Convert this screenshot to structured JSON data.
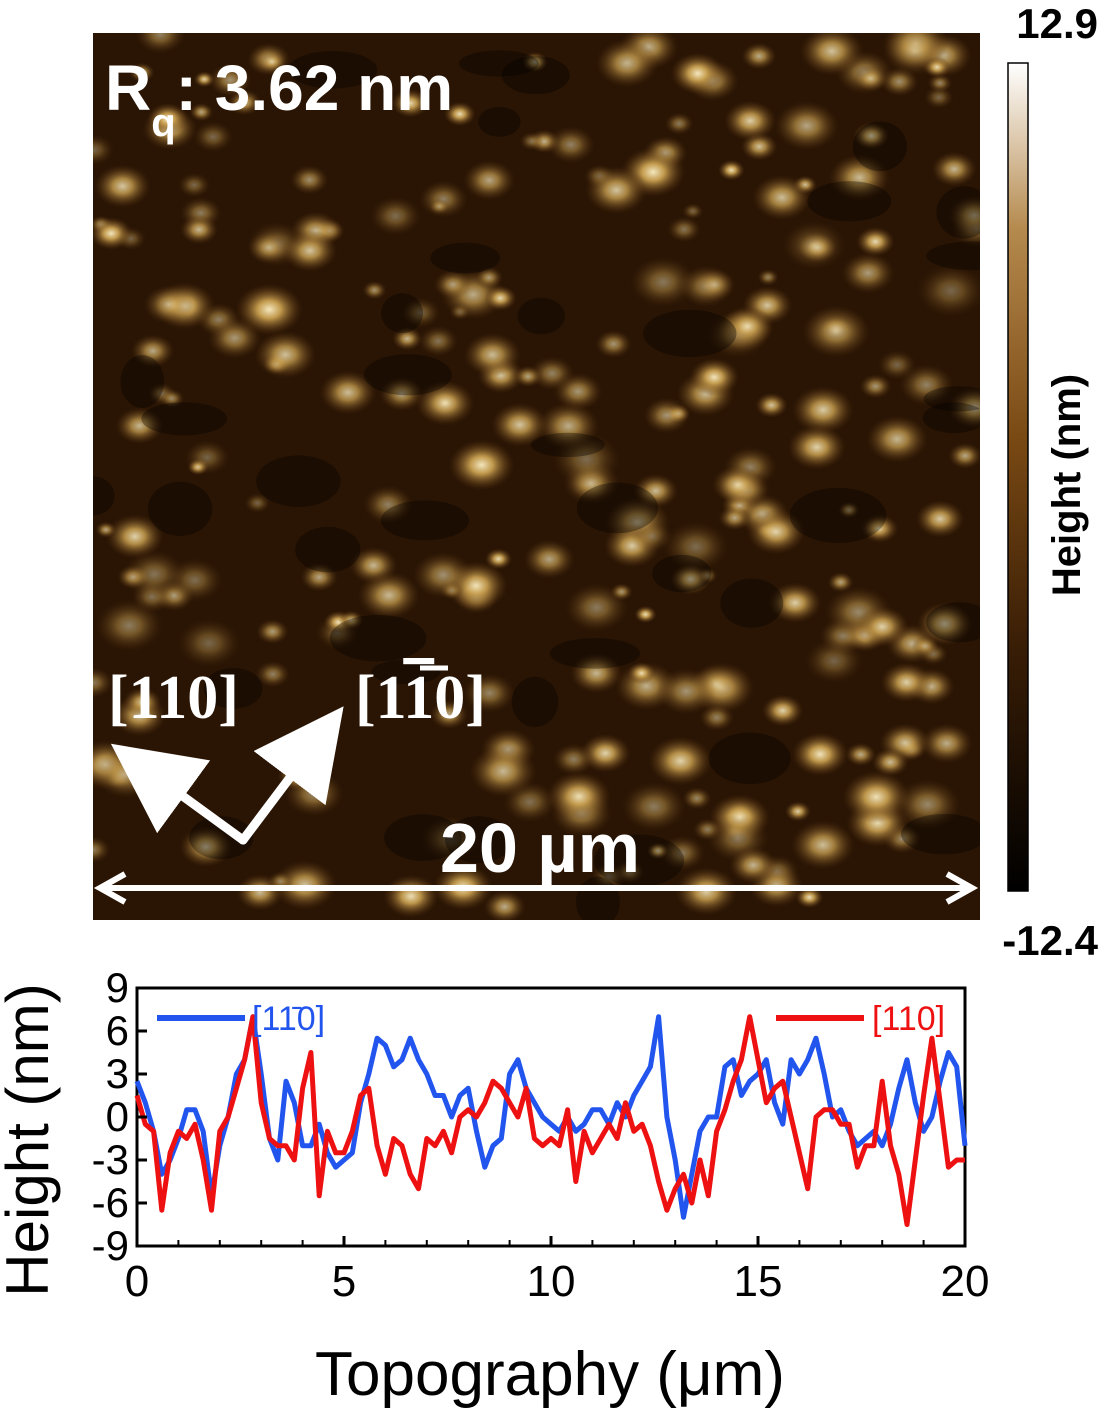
{
  "afm_image": {
    "roughness_label": "R",
    "roughness_subscript": "q",
    "roughness_value": ": 3.62 nm",
    "scale_bar_label": "20 µm",
    "direction_label_a": "[110]",
    "direction_label_b_prefix": "[1",
    "direction_label_b_bar": "1",
    "direction_label_b_suffix": "0]",
    "colorbar": {
      "max_label": "12.9",
      "min_label": "-12.4",
      "title": "Height (nm)",
      "colors": [
        "#000000",
        "#3a1e06",
        "#7a4a14",
        "#b58a4e",
        "#ffffff"
      ]
    },
    "surface_colors": {
      "background": "#2a1504",
      "feature": "#c9a050",
      "highlight": "#fff2c8"
    }
  },
  "chart_data": {
    "type": "line",
    "xlabel": "Topography (μm)",
    "ylabel": "Height (nm)",
    "xlim": [
      0,
      20
    ],
    "ylim": [
      -9,
      9
    ],
    "xticks": [
      0,
      5,
      10,
      15,
      20
    ],
    "yticks": [
      -9,
      -6,
      -3,
      0,
      3,
      6,
      9
    ],
    "legend": [
      "top-left",
      "top-right"
    ],
    "series": [
      {
        "name": "[11̄0]",
        "color": "#2255ee",
        "x": [
          0.0,
          0.2,
          0.4,
          0.6,
          0.8,
          1.0,
          1.2,
          1.4,
          1.6,
          1.8,
          2.0,
          2.2,
          2.4,
          2.6,
          2.8,
          3.0,
          3.2,
          3.4,
          3.6,
          3.8,
          4.0,
          4.2,
          4.4,
          4.6,
          4.8,
          5.0,
          5.2,
          5.4,
          5.6,
          5.8,
          6.0,
          6.2,
          6.4,
          6.6,
          6.8,
          7.0,
          7.2,
          7.4,
          7.6,
          7.8,
          8.0,
          8.2,
          8.4,
          8.6,
          8.8,
          9.0,
          9.2,
          9.4,
          9.6,
          9.8,
          10.0,
          10.2,
          10.4,
          10.6,
          10.8,
          11.0,
          11.2,
          11.4,
          11.6,
          11.8,
          12.0,
          12.2,
          12.4,
          12.6,
          12.8,
          13.0,
          13.2,
          13.4,
          13.6,
          13.8,
          14.0,
          14.2,
          14.4,
          14.6,
          14.8,
          15.0,
          15.2,
          15.4,
          15.6,
          15.8,
          16.0,
          16.2,
          16.4,
          16.6,
          16.8,
          17.0,
          17.2,
          17.4,
          17.6,
          17.8,
          18.0,
          18.2,
          18.4,
          18.6,
          18.8,
          19.0,
          19.2,
          19.4,
          19.6,
          19.8,
          20.0
        ],
        "values": [
          2.5,
          1.0,
          -1.0,
          -4.0,
          -3.0,
          -1.5,
          0.5,
          0.5,
          -1.0,
          -5.5,
          -2.0,
          0.0,
          3.0,
          4.0,
          7.0,
          3.0,
          -1.5,
          -3.0,
          2.5,
          1.0,
          -2.0,
          -2.0,
          -0.5,
          -2.5,
          -3.5,
          -3.0,
          -2.5,
          1.0,
          3.0,
          5.5,
          5.0,
          3.5,
          4.0,
          5.5,
          4.0,
          3.0,
          1.5,
          1.5,
          0.0,
          1.5,
          2.0,
          -1.0,
          -3.5,
          -2.0,
          -1.5,
          3.0,
          4.0,
          2.0,
          1.0,
          0.0,
          -0.5,
          -1.0,
          0.0,
          -1.0,
          -0.5,
          0.5,
          0.5,
          -0.5,
          1.0,
          0.0,
          1.5,
          2.5,
          3.5,
          7.0,
          0.0,
          -3.0,
          -7.0,
          -4.0,
          -1.0,
          0.0,
          0.0,
          3.5,
          4.0,
          1.5,
          2.5,
          3.0,
          4.0,
          1.0,
          -0.5,
          4.0,
          3.0,
          4.0,
          5.5,
          3.0,
          0.0,
          0.5,
          -1.0,
          -2.0,
          -1.5,
          -1.0,
          -2.0,
          -0.5,
          2.0,
          4.0,
          1.0,
          -1.0,
          0.0,
          2.5,
          4.5,
          3.5,
          -2.0
        ]
      },
      {
        "name": "[110]",
        "color": "#ee1111",
        "x": [
          0.0,
          0.2,
          0.4,
          0.6,
          0.8,
          1.0,
          1.2,
          1.4,
          1.6,
          1.8,
          2.0,
          2.2,
          2.4,
          2.6,
          2.8,
          3.0,
          3.2,
          3.4,
          3.6,
          3.8,
          4.0,
          4.2,
          4.4,
          4.6,
          4.8,
          5.0,
          5.2,
          5.4,
          5.6,
          5.8,
          6.0,
          6.2,
          6.4,
          6.6,
          6.8,
          7.0,
          7.2,
          7.4,
          7.6,
          7.8,
          8.0,
          8.2,
          8.4,
          8.6,
          8.8,
          9.0,
          9.2,
          9.4,
          9.6,
          9.8,
          10.0,
          10.2,
          10.4,
          10.6,
          10.8,
          11.0,
          11.2,
          11.4,
          11.6,
          11.8,
          12.0,
          12.2,
          12.4,
          12.6,
          12.8,
          13.0,
          13.2,
          13.4,
          13.6,
          13.8,
          14.0,
          14.2,
          14.4,
          14.6,
          14.8,
          15.0,
          15.2,
          15.4,
          15.6,
          15.8,
          16.0,
          16.2,
          16.4,
          16.6,
          16.8,
          17.0,
          17.2,
          17.4,
          17.6,
          17.8,
          18.0,
          18.2,
          18.4,
          18.6,
          18.8,
          19.0,
          19.2,
          19.4,
          19.6,
          19.8,
          20.0
        ],
        "values": [
          1.5,
          -0.5,
          -1.0,
          -6.5,
          -2.5,
          -1.0,
          -1.5,
          -0.5,
          -3.0,
          -6.5,
          -1.0,
          0.0,
          2.0,
          4.0,
          7.0,
          1.0,
          -1.5,
          -2.0,
          -2.0,
          -3.0,
          2.0,
          4.5,
          -5.5,
          -1.0,
          -2.5,
          -2.5,
          -1.0,
          1.5,
          2.0,
          -2.0,
          -4.0,
          -1.5,
          -2.0,
          -4.0,
          -5.0,
          -1.5,
          -2.0,
          -1.0,
          -2.5,
          0.0,
          0.5,
          0.0,
          1.0,
          2.5,
          2.0,
          1.0,
          0.0,
          2.0,
          -1.5,
          -2.0,
          -1.5,
          -2.0,
          0.5,
          -4.5,
          -1.0,
          -2.5,
          -1.5,
          -0.5,
          -1.5,
          1.0,
          -1.0,
          -0.5,
          -2.0,
          -4.5,
          -6.5,
          -5.0,
          -4.0,
          -6.0,
          -3.0,
          -5.5,
          -1.0,
          0.5,
          2.5,
          4.0,
          7.0,
          4.0,
          1.0,
          2.0,
          2.5,
          0.0,
          -2.5,
          -5.0,
          0.0,
          0.5,
          0.5,
          -0.5,
          -0.5,
          -3.5,
          -2.0,
          -2.0,
          2.5,
          -2.0,
          -4.0,
          -7.5,
          -3.0,
          1.5,
          5.5,
          1.0,
          -3.5,
          -3.0,
          -3.0
        ]
      }
    ]
  }
}
